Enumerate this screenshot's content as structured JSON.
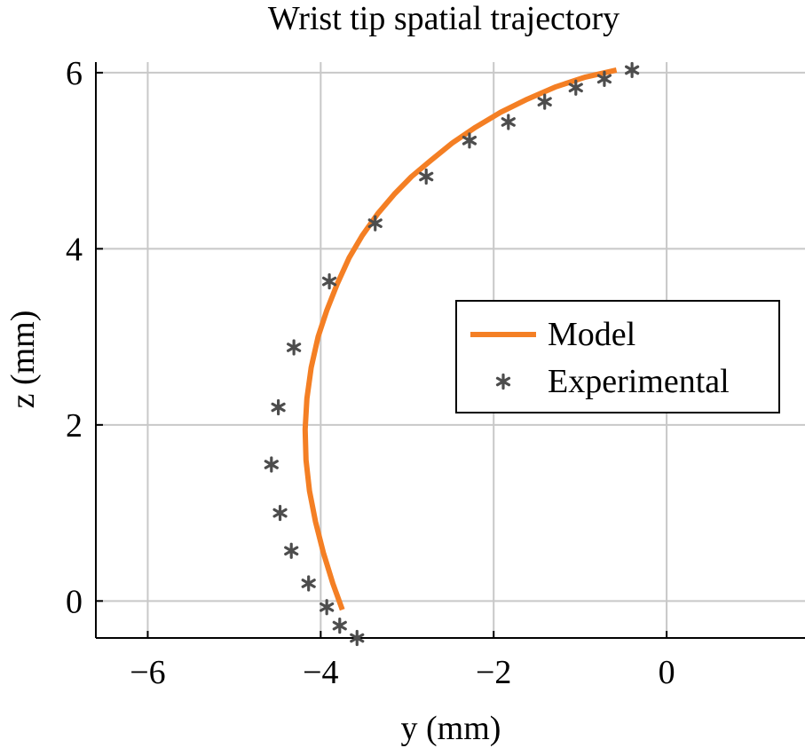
{
  "chart_data": {
    "type": "line",
    "title": "Wrist tip spatial trajectory",
    "xlabel": "y (mm)",
    "ylabel": "z (mm)",
    "xlim": [
      -6.6,
      1.6
    ],
    "ylim": [
      -0.42,
      6.12
    ],
    "xticks": [
      -6,
      -4,
      -2,
      0
    ],
    "yticks": [
      0,
      2,
      4,
      6
    ],
    "xtick_labels": [
      "−6",
      "−4",
      "−2",
      "0"
    ],
    "ytick_labels": [
      "0",
      "2",
      "4",
      "6"
    ],
    "grid": true,
    "legend_position": "right",
    "series": [
      {
        "name": "Model",
        "style": "line",
        "color": "#F47F24",
        "x": [
          -3.75,
          -3.86,
          -3.97,
          -4.06,
          -4.13,
          -4.17,
          -4.18,
          -4.16,
          -4.11,
          -4.03,
          -3.93,
          -3.81,
          -3.67,
          -3.52,
          -3.34,
          -3.15,
          -2.95,
          -2.73,
          -2.48,
          -2.21,
          -1.92,
          -1.61,
          -1.28,
          -0.94,
          -0.58
        ],
        "y": [
          -0.1,
          0.2,
          0.55,
          0.9,
          1.25,
          1.6,
          1.95,
          2.3,
          2.65,
          3.0,
          3.3,
          3.6,
          3.9,
          4.15,
          4.4,
          4.62,
          4.82,
          5.0,
          5.2,
          5.38,
          5.55,
          5.7,
          5.84,
          5.95,
          6.03
        ]
      },
      {
        "name": "Experimental",
        "style": "marker",
        "marker": "asterisk",
        "color": "#4D4D4D",
        "x": [
          -3.58,
          -3.78,
          -3.93,
          -4.14,
          -4.34,
          -4.47,
          -4.57,
          -4.49,
          -4.31,
          -3.9,
          -3.37,
          -2.78,
          -2.28,
          -1.83,
          -1.41,
          -1.05,
          -0.72,
          -0.4
        ],
        "y": [
          -0.42,
          -0.28,
          -0.07,
          0.2,
          0.57,
          1.0,
          1.55,
          2.2,
          2.88,
          3.63,
          4.29,
          4.82,
          5.23,
          5.44,
          5.67,
          5.83,
          5.93,
          6.03
        ]
      }
    ]
  }
}
